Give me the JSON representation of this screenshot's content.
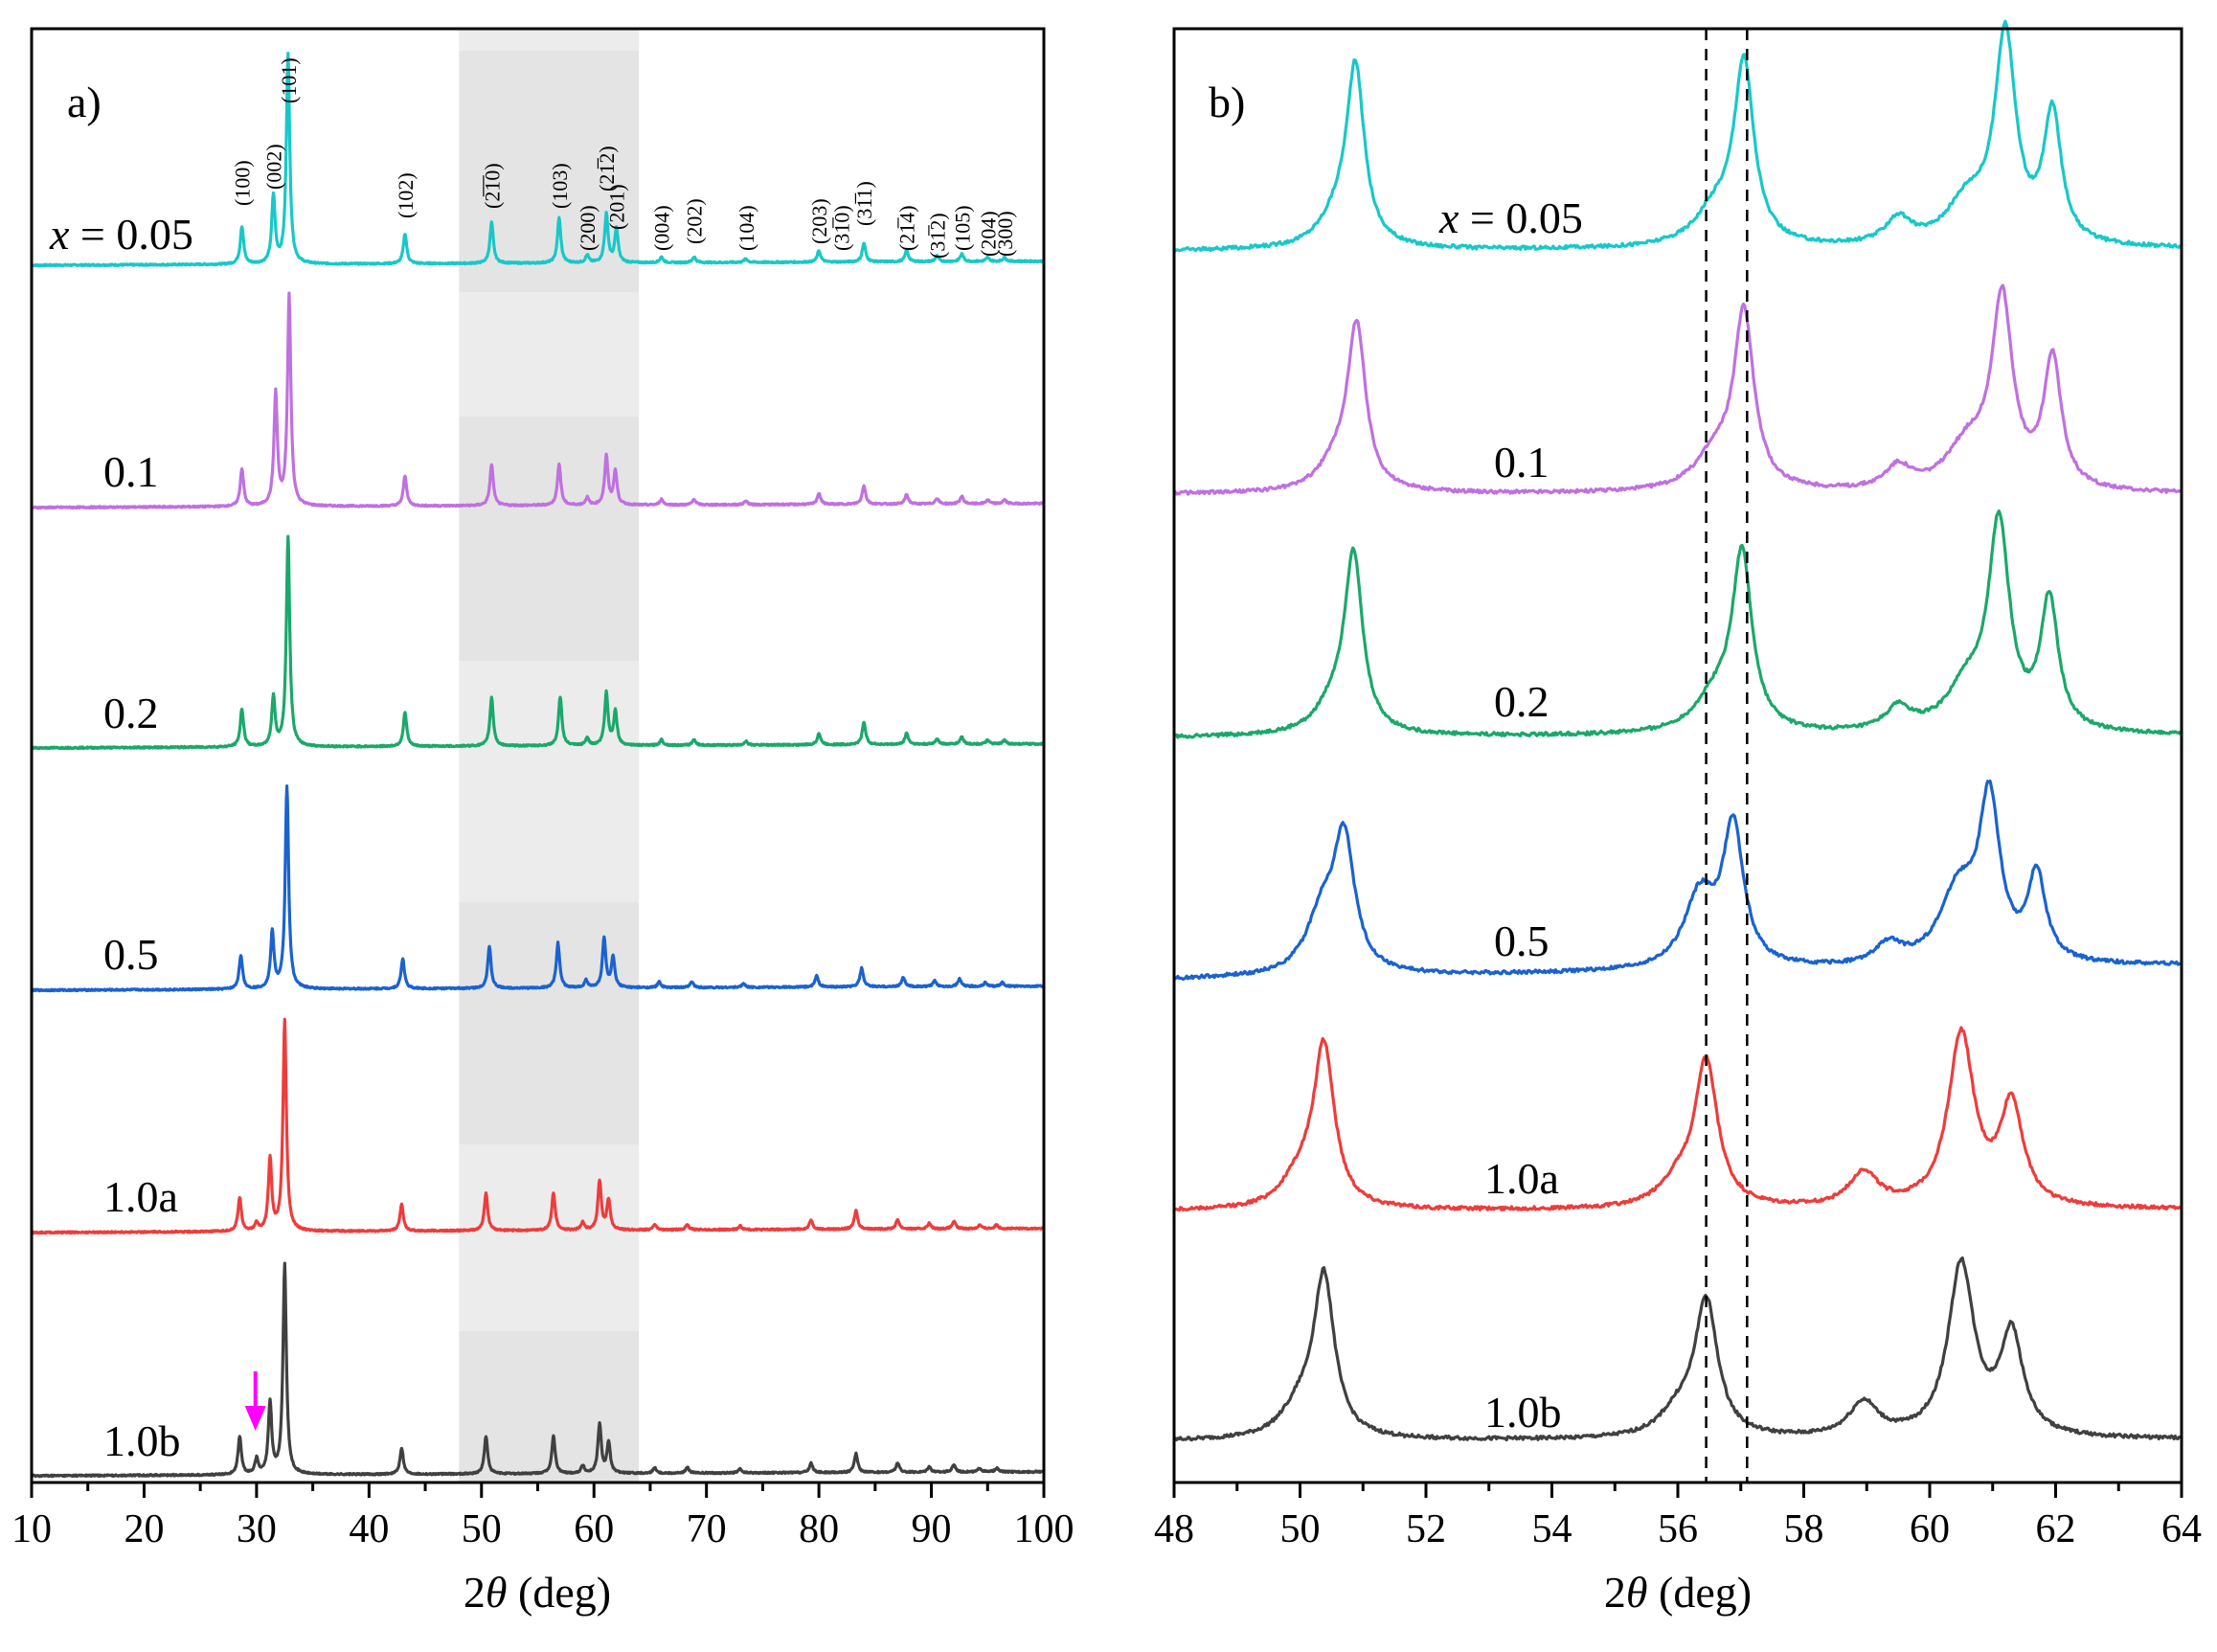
{
  "chart_data": [
    {
      "panel": "a)",
      "type": "line",
      "xlabel": "2θ (deg)",
      "ylabel": "",
      "xlim": [
        10,
        100
      ],
      "xticks": [
        "10",
        "20",
        "30",
        "40",
        "50",
        "60",
        "70",
        "80",
        "90",
        "100"
      ],
      "highlight_range": [
        48,
        64
      ],
      "series": [
        {
          "name": "x = 0.05",
          "label_prefix": "x",
          "label_value": "= 0.05",
          "color": "#18c8c8",
          "peaks": [
            [
              28.7,
              0.1
            ],
            [
              31.5,
              0.18
            ],
            [
              32.8,
              0.56
            ],
            [
              43.2,
              0.08
            ],
            [
              50.9,
              0.11
            ],
            [
              56.9,
              0.12
            ],
            [
              59.4,
              0.02
            ],
            [
              61.1,
              0.13
            ],
            [
              62.0,
              0.09
            ],
            [
              66.0,
              0.015
            ],
            [
              68.9,
              0.015
            ],
            [
              73.5,
              0.01
            ],
            [
              80.0,
              0.03
            ],
            [
              84.0,
              0.05
            ],
            [
              87.8,
              0.03
            ],
            [
              90.5,
              0.015
            ],
            [
              92.7,
              0.02
            ],
            [
              95.0,
              0.01
            ],
            [
              96.5,
              0.01
            ]
          ]
        },
        {
          "name": "0.1",
          "label_value": "0.1",
          "color": "#c070e0",
          "peaks": [
            [
              28.7,
              0.1
            ],
            [
              31.7,
              0.3
            ],
            [
              32.9,
              0.56
            ],
            [
              43.2,
              0.08
            ],
            [
              50.9,
              0.11
            ],
            [
              56.9,
              0.11
            ],
            [
              59.4,
              0.02
            ],
            [
              61.1,
              0.13
            ],
            [
              61.9,
              0.09
            ],
            [
              66.0,
              0.015
            ],
            [
              68.9,
              0.015
            ],
            [
              73.5,
              0.01
            ],
            [
              80.0,
              0.03
            ],
            [
              84.0,
              0.05
            ],
            [
              87.8,
              0.025
            ],
            [
              90.5,
              0.015
            ],
            [
              92.7,
              0.02
            ],
            [
              95.0,
              0.01
            ],
            [
              96.5,
              0.01
            ]
          ]
        },
        {
          "name": "0.2",
          "label_value": "0.2",
          "color": "#1ba86a",
          "peaks": [
            [
              28.7,
              0.1
            ],
            [
              31.5,
              0.13
            ],
            [
              32.8,
              0.56
            ],
            [
              43.2,
              0.09
            ],
            [
              50.9,
              0.13
            ],
            [
              57.0,
              0.13
            ],
            [
              59.4,
              0.02
            ],
            [
              61.1,
              0.14
            ],
            [
              61.9,
              0.09
            ],
            [
              66.0,
              0.015
            ],
            [
              68.9,
              0.015
            ],
            [
              73.5,
              0.01
            ],
            [
              80.0,
              0.03
            ],
            [
              84.0,
              0.06
            ],
            [
              87.8,
              0.03
            ],
            [
              90.5,
              0.015
            ],
            [
              92.7,
              0.02
            ],
            [
              95.0,
              0.01
            ],
            [
              96.5,
              0.01
            ]
          ]
        },
        {
          "name": "0.5",
          "label_value": "0.5",
          "color": "#1a62d0",
          "peaks": [
            [
              28.6,
              0.09
            ],
            [
              31.4,
              0.15
            ],
            [
              32.7,
              0.54
            ],
            [
              43.0,
              0.08
            ],
            [
              50.7,
              0.11
            ],
            [
              56.8,
              0.12
            ],
            [
              59.3,
              0.02
            ],
            [
              60.9,
              0.13
            ],
            [
              61.7,
              0.08
            ],
            [
              65.8,
              0.015
            ],
            [
              68.7,
              0.015
            ],
            [
              73.3,
              0.01
            ],
            [
              79.8,
              0.03
            ],
            [
              83.8,
              0.05
            ],
            [
              87.5,
              0.025
            ],
            [
              90.3,
              0.015
            ],
            [
              92.5,
              0.02
            ],
            [
              94.8,
              0.01
            ],
            [
              96.3,
              0.01
            ]
          ]
        },
        {
          "name": "1.0a",
          "label_value": "1.0a",
          "color": "#ee3c3c",
          "peaks": [
            [
              28.5,
              0.09
            ],
            [
              30.0,
              0.02
            ],
            [
              31.2,
              0.19
            ],
            [
              32.5,
              0.56
            ],
            [
              42.9,
              0.07
            ],
            [
              50.4,
              0.1
            ],
            [
              56.4,
              0.1
            ],
            [
              59.0,
              0.02
            ],
            [
              60.5,
              0.13
            ],
            [
              61.3,
              0.08
            ],
            [
              65.4,
              0.015
            ],
            [
              68.3,
              0.015
            ],
            [
              73.0,
              0.01
            ],
            [
              79.3,
              0.025
            ],
            [
              83.3,
              0.05
            ],
            [
              87.0,
              0.025
            ],
            [
              89.8,
              0.015
            ],
            [
              92.0,
              0.02
            ],
            [
              94.3,
              0.01
            ],
            [
              95.8,
              0.01
            ]
          ]
        },
        {
          "name": "1.0b",
          "label_value": "1.0b",
          "color": "#404040",
          "peaks": [
            [
              28.5,
              0.1
            ],
            [
              30.0,
              0.04
            ],
            [
              31.2,
              0.19
            ],
            [
              32.5,
              0.56
            ],
            [
              42.9,
              0.07
            ],
            [
              50.4,
              0.1
            ],
            [
              56.4,
              0.1
            ],
            [
              59.0,
              0.02
            ],
            [
              60.5,
              0.13
            ],
            [
              61.3,
              0.08
            ],
            [
              65.4,
              0.015
            ],
            [
              68.3,
              0.015
            ],
            [
              73.0,
              0.01
            ],
            [
              79.3,
              0.025
            ],
            [
              83.3,
              0.05
            ],
            [
              87.0,
              0.025
            ],
            [
              89.8,
              0.015
            ],
            [
              92.0,
              0.02
            ],
            [
              94.3,
              0.01
            ],
            [
              95.8,
              0.01
            ]
          ]
        }
      ],
      "hkl_labels": [
        {
          "text": "(100)",
          "x": 28.7
        },
        {
          "text": "(002)",
          "x": 31.5
        },
        {
          "text": "(101)",
          "x": 32.8
        },
        {
          "text": "(102)",
          "x": 43.2
        },
        {
          "text": "(2̅1̅0)",
          "x": 50.9
        },
        {
          "text": "(103)",
          "x": 56.9
        },
        {
          "text": "(200)",
          "x": 59.4
        },
        {
          "text": "(21̅2)",
          "x": 61.1
        },
        {
          "text": "(201)",
          "x": 62.0
        },
        {
          "text": "(004)",
          "x": 66.0
        },
        {
          "text": "(202)",
          "x": 68.9
        },
        {
          "text": "(104)",
          "x": 73.5
        },
        {
          "text": "(203)",
          "x": 80.0
        },
        {
          "text": "(31̅0)",
          "x": 82.0
        },
        {
          "text": "(31̅1)",
          "x": 84.0
        },
        {
          "text": "(21̅4)",
          "x": 87.8
        },
        {
          "text": "(31̅2)",
          "x": 90.5
        },
        {
          "text": "(105)",
          "x": 92.7
        },
        {
          "text": "(204)",
          "x": 95.0
        },
        {
          "text": "(300)",
          "x": 96.5
        }
      ],
      "annotation": {
        "type": "arrow",
        "x": 29.9,
        "color": "#ff00ff",
        "series": "1.0b"
      }
    },
    {
      "panel": "b)",
      "type": "line",
      "xlabel": "2θ (deg)",
      "ylabel": "",
      "xlim": [
        48,
        64
      ],
      "xticks": [
        "48",
        "50",
        "52",
        "54",
        "56",
        "58",
        "60",
        "62",
        "64"
      ],
      "reference_lines": [
        56.45,
        57.1
      ],
      "series": [
        {
          "name": "x = 0.05",
          "label_prefix": "x",
          "label_value": "= 0.05",
          "color": "#18c8c8",
          "peaks": [
            [
              50.88,
              0.6,
              0.17
            ],
            [
              50.6,
              0.1,
              0.35
            ],
            [
              57.05,
              0.62,
              0.19
            ],
            [
              56.6,
              0.12,
              0.4
            ],
            [
              59.5,
              0.09,
              0.25
            ],
            [
              60.6,
              0.15,
              0.4
            ],
            [
              61.2,
              0.72,
              0.2
            ],
            [
              61.95,
              0.45,
              0.17
            ]
          ]
        },
        {
          "name": "0.1",
          "label_value": "0.1",
          "color": "#c070e0",
          "peaks": [
            [
              50.9,
              0.55,
              0.17
            ],
            [
              50.6,
              0.1,
              0.35
            ],
            [
              57.05,
              0.6,
              0.19
            ],
            [
              56.6,
              0.12,
              0.4
            ],
            [
              59.5,
              0.08,
              0.25
            ],
            [
              60.6,
              0.15,
              0.4
            ],
            [
              61.15,
              0.65,
              0.2
            ],
            [
              61.95,
              0.45,
              0.17
            ]
          ]
        },
        {
          "name": "0.2",
          "label_value": "0.2",
          "color": "#1ba86a",
          "peaks": [
            [
              50.85,
              0.6,
              0.17
            ],
            [
              50.55,
              0.1,
              0.35
            ],
            [
              57.02,
              0.6,
              0.19
            ],
            [
              56.6,
              0.12,
              0.4
            ],
            [
              59.5,
              0.08,
              0.25
            ],
            [
              60.6,
              0.15,
              0.4
            ],
            [
              61.1,
              0.7,
              0.2
            ],
            [
              61.9,
              0.45,
              0.17
            ]
          ]
        },
        {
          "name": "0.5",
          "label_value": "0.5",
          "color": "#1a62d0",
          "peaks": [
            [
              50.7,
              0.45,
              0.2
            ],
            [
              50.35,
              0.2,
              0.3
            ],
            [
              56.88,
              0.48,
              0.2
            ],
            [
              56.35,
              0.25,
              0.3
            ],
            [
              59.35,
              0.07,
              0.25
            ],
            [
              60.45,
              0.25,
              0.35
            ],
            [
              60.95,
              0.55,
              0.2
            ],
            [
              61.7,
              0.3,
              0.17
            ]
          ]
        },
        {
          "name": "1.0a",
          "label_value": "1.0a",
          "color": "#ee3c3c",
          "peaks": [
            [
              50.38,
              0.55,
              0.2
            ],
            [
              50.0,
              0.1,
              0.35
            ],
            [
              56.45,
              0.5,
              0.22
            ],
            [
              56.0,
              0.08,
              0.35
            ],
            [
              58.95,
              0.12,
              0.28
            ],
            [
              60.5,
              0.6,
              0.25
            ],
            [
              61.3,
              0.35,
              0.22
            ]
          ]
        },
        {
          "name": "1.0b",
          "label_value": "1.0b",
          "color": "#404040",
          "peaks": [
            [
              50.38,
              0.55,
              0.2
            ],
            [
              50.0,
              0.1,
              0.35
            ],
            [
              56.45,
              0.47,
              0.22
            ],
            [
              56.0,
              0.08,
              0.35
            ],
            [
              58.95,
              0.12,
              0.28
            ],
            [
              60.5,
              0.6,
              0.25
            ],
            [
              61.3,
              0.35,
              0.22
            ]
          ]
        }
      ]
    }
  ]
}
